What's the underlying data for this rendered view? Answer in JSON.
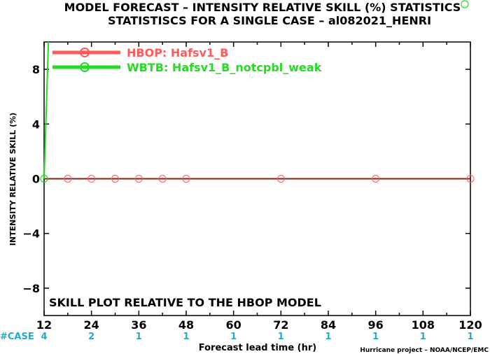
{
  "chart_data": {
    "type": "line",
    "title_line1": "MODEL FORECAST – INTENSITY RELATIVE SKILL (%) STATISTICS",
    "title_line2": "STATISTISCS FOR A SINGLE CASE – al082021_HENRI",
    "xlabel": "Forecast lead time (hr)",
    "ylabel": "INTENSITY RELATIVE SKILL (%)",
    "xlim": [
      12,
      120
    ],
    "ylim": [
      -10,
      10
    ],
    "x_ticks": [
      "12",
      "24",
      "36",
      "48",
      "60",
      "72",
      "84",
      "96",
      "108",
      "120"
    ],
    "y_ticks": [
      "8",
      "4",
      "0",
      "−4",
      "−8"
    ],
    "y_tick_values": [
      8,
      4,
      0,
      -4,
      -8
    ],
    "annotation": "SKILL PLOT RELATIVE TO THE HBOP MODEL",
    "footer": "Hurricane project – NOAA/NCEP/EMC",
    "case_label": "#CASE",
    "case_counts": [
      {
        "x": 12,
        "n": "4"
      },
      {
        "x": 24,
        "n": "2"
      },
      {
        "x": 36,
        "n": "1"
      },
      {
        "x": 48,
        "n": "1"
      },
      {
        "x": 60,
        "n": "1"
      },
      {
        "x": 72,
        "n": "1"
      },
      {
        "x": 84,
        "n": "1"
      },
      {
        "x": 96,
        "n": "1"
      },
      {
        "x": 108,
        "n": "1"
      },
      {
        "x": 120,
        "n": "1"
      }
    ],
    "series": [
      {
        "name": "HBOP: Hafsv1_B",
        "color": "#ff5a5a",
        "x": [
          12,
          18,
          24,
          30,
          36,
          42,
          48,
          72,
          96,
          120
        ],
        "y": [
          0,
          0,
          0,
          0,
          0,
          0,
          0,
          0,
          0,
          0
        ]
      },
      {
        "name": "WBTB: Hafsv1_B_notcpbl_weak",
        "color": "#22dd22",
        "x": [
          12,
          13.1
        ],
        "y": [
          0,
          10
        ]
      }
    ],
    "grid": false,
    "legend_position": "top-left"
  }
}
